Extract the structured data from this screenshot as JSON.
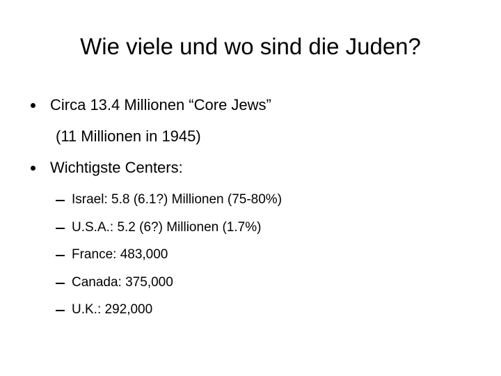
{
  "title": "Wie viele und wo sind die Juden?",
  "bullets": [
    {
      "text": "Circa 13.4 Millionen “Core Jews”",
      "continuation": "(11 Millionen in 1945)"
    },
    {
      "text": "Wichtigste Centers:",
      "items": [
        "Israel: 5.8 (6.1?) Millionen (75-80%)",
        "U.S.A.: 5.2 (6?) Millionen (1.7%)",
        "France: 483,000",
        "Canada: 375,000",
        "U.K.: 292,000"
      ]
    }
  ]
}
